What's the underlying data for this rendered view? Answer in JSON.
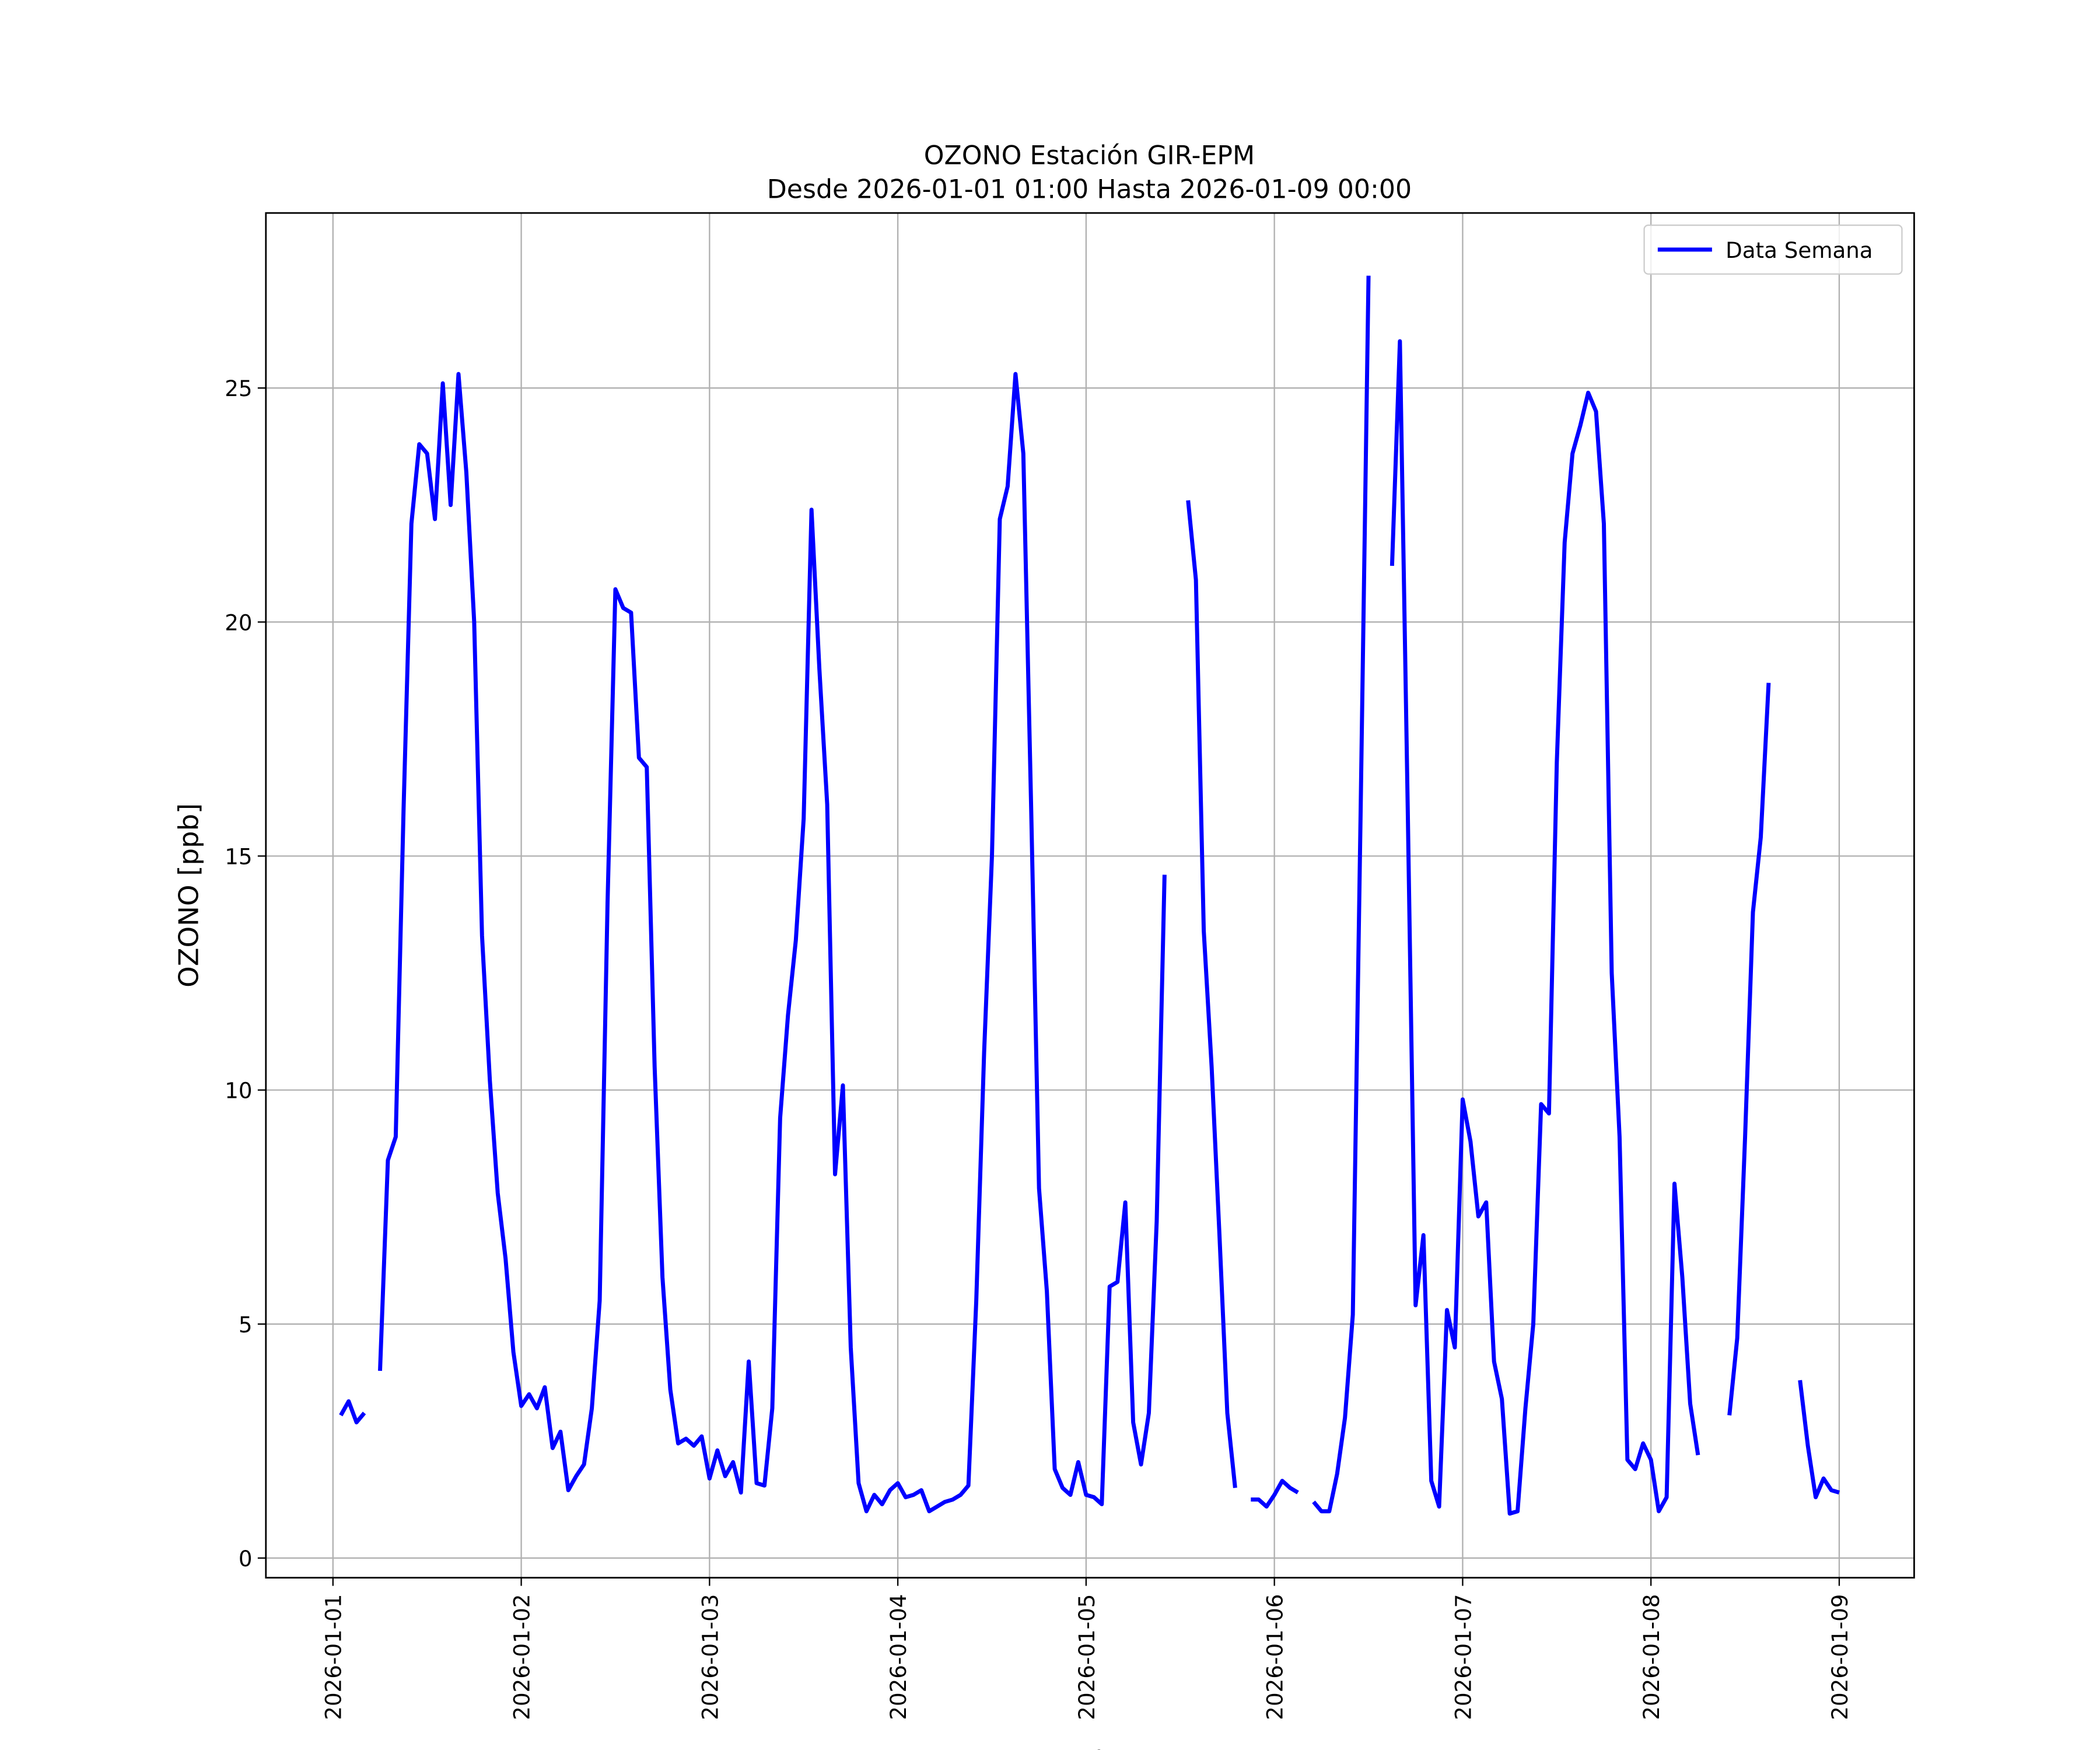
{
  "chart_data": {
    "type": "line",
    "title": "OZONO Estación GIR-EPM",
    "subtitle": "Desde 2026-01-01 01:00 Hasta 2026-01-09 00:00",
    "xlabel": "Fecha",
    "ylabel": "OZONO [ppb]",
    "x": [
      "2026-01-01 01:00",
      "2026-01-01 02:00",
      "2026-01-01 03:00",
      "2026-01-01 04:00",
      "2026-01-01 05:00",
      "2026-01-01 06:00",
      "2026-01-01 07:00",
      "2026-01-01 08:00",
      "2026-01-01 09:00",
      "2026-01-01 10:00",
      "2026-01-01 11:00",
      "2026-01-01 12:00",
      "2026-01-01 13:00",
      "2026-01-01 14:00",
      "2026-01-01 15:00",
      "2026-01-01 16:00",
      "2026-01-01 17:00",
      "2026-01-01 18:00",
      "2026-01-01 19:00",
      "2026-01-01 20:00",
      "2026-01-01 21:00",
      "2026-01-01 22:00",
      "2026-01-01 23:00",
      "2026-01-02 00:00",
      "2026-01-02 01:00",
      "2026-01-02 02:00",
      "2026-01-02 03:00",
      "2026-01-02 04:00",
      "2026-01-02 05:00",
      "2026-01-02 06:00",
      "2026-01-02 07:00",
      "2026-01-02 08:00",
      "2026-01-02 09:00",
      "2026-01-02 10:00",
      "2026-01-02 11:00",
      "2026-01-02 12:00",
      "2026-01-02 13:00",
      "2026-01-02 14:00",
      "2026-01-02 15:00",
      "2026-01-02 16:00",
      "2026-01-02 17:00",
      "2026-01-02 18:00",
      "2026-01-02 19:00",
      "2026-01-02 20:00",
      "2026-01-02 21:00",
      "2026-01-02 22:00",
      "2026-01-02 23:00",
      "2026-01-03 00:00",
      "2026-01-03 01:00",
      "2026-01-03 02:00",
      "2026-01-03 03:00",
      "2026-01-03 04:00",
      "2026-01-03 05:00",
      "2026-01-03 06:00",
      "2026-01-03 07:00",
      "2026-01-03 08:00",
      "2026-01-03 09:00",
      "2026-01-03 10:00",
      "2026-01-03 11:00",
      "2026-01-03 12:00",
      "2026-01-03 13:00",
      "2026-01-03 14:00",
      "2026-01-03 15:00",
      "2026-01-03 16:00",
      "2026-01-03 17:00",
      "2026-01-03 18:00",
      "2026-01-03 19:00",
      "2026-01-03 20:00",
      "2026-01-03 21:00",
      "2026-01-03 22:00",
      "2026-01-03 23:00",
      "2026-01-04 00:00",
      "2026-01-04 01:00",
      "2026-01-04 02:00",
      "2026-01-04 03:00",
      "2026-01-04 04:00",
      "2026-01-04 05:00",
      "2026-01-04 06:00",
      "2026-01-04 07:00",
      "2026-01-04 08:00",
      "2026-01-04 09:00",
      "2026-01-04 10:00",
      "2026-01-04 11:00",
      "2026-01-04 12:00",
      "2026-01-04 13:00",
      "2026-01-04 14:00",
      "2026-01-04 15:00",
      "2026-01-04 16:00",
      "2026-01-04 17:00",
      "2026-01-04 18:00",
      "2026-01-04 19:00",
      "2026-01-04 20:00",
      "2026-01-04 21:00",
      "2026-01-04 22:00",
      "2026-01-04 23:00",
      "2026-01-05 00:00",
      "2026-01-05 01:00",
      "2026-01-05 02:00",
      "2026-01-05 03:00",
      "2026-01-05 04:00",
      "2026-01-05 05:00",
      "2026-01-05 06:00",
      "2026-01-05 07:00",
      "2026-01-05 08:00",
      "2026-01-05 09:00",
      "2026-01-05 10:00",
      "2026-01-05 11:00",
      "2026-01-05 12:00",
      "2026-01-05 13:00",
      "2026-01-05 14:00",
      "2026-01-05 15:00",
      "2026-01-05 16:00",
      "2026-01-05 17:00",
      "2026-01-05 18:00",
      "2026-01-05 19:00",
      "2026-01-05 20:00",
      "2026-01-05 21:00",
      "2026-01-05 22:00",
      "2026-01-05 23:00",
      "2026-01-06 00:00",
      "2026-01-06 01:00",
      "2026-01-06 02:00",
      "2026-01-06 03:00",
      "2026-01-06 04:00",
      "2026-01-06 05:00",
      "2026-01-06 06:00",
      "2026-01-06 07:00",
      "2026-01-06 08:00",
      "2026-01-06 09:00",
      "2026-01-06 10:00",
      "2026-01-06 11:00",
      "2026-01-06 12:00",
      "2026-01-06 13:00",
      "2026-01-06 14:00",
      "2026-01-06 15:00",
      "2026-01-06 16:00",
      "2026-01-06 17:00",
      "2026-01-06 18:00",
      "2026-01-06 19:00",
      "2026-01-06 20:00",
      "2026-01-06 21:00",
      "2026-01-06 22:00",
      "2026-01-06 23:00",
      "2026-01-07 00:00",
      "2026-01-07 01:00",
      "2026-01-07 02:00",
      "2026-01-07 03:00",
      "2026-01-07 04:00",
      "2026-01-07 05:00",
      "2026-01-07 06:00",
      "2026-01-07 07:00",
      "2026-01-07 08:00",
      "2026-01-07 09:00",
      "2026-01-07 10:00",
      "2026-01-07 11:00",
      "2026-01-07 12:00",
      "2026-01-07 13:00",
      "2026-01-07 14:00",
      "2026-01-07 15:00",
      "2026-01-07 16:00",
      "2026-01-07 17:00",
      "2026-01-07 18:00",
      "2026-01-07 19:00",
      "2026-01-07 20:00",
      "2026-01-07 21:00",
      "2026-01-07 22:00",
      "2026-01-07 23:00",
      "2026-01-08 00:00",
      "2026-01-08 01:00",
      "2026-01-08 02:00",
      "2026-01-08 03:00",
      "2026-01-08 04:00",
      "2026-01-08 05:00",
      "2026-01-08 06:00",
      "2026-01-08 07:00",
      "2026-01-08 08:00",
      "2026-01-08 09:00",
      "2026-01-08 10:00",
      "2026-01-08 11:00",
      "2026-01-08 12:00",
      "2026-01-08 13:00",
      "2026-01-08 14:00",
      "2026-01-08 15:00",
      "2026-01-08 16:00",
      "2026-01-08 17:00",
      "2026-01-08 18:00",
      "2026-01-08 19:00",
      "2026-01-08 20:00",
      "2026-01-08 21:00",
      "2026-01-08 22:00",
      "2026-01-08 23:00",
      "2026-01-09 00:00"
    ],
    "series": [
      {
        "name": "Data Semana",
        "color": "#0000ff",
        "values": [
          3.05,
          3.35,
          2.9,
          3.1,
          null,
          4.0,
          8.5,
          9.0,
          16.0,
          22.1,
          23.8,
          23.6,
          22.2,
          25.1,
          22.5,
          25.3,
          23.2,
          20.0,
          13.3,
          10.2,
          7.8,
          6.4,
          4.4,
          3.25,
          3.5,
          3.2,
          3.65,
          2.35,
          2.7,
          1.45,
          1.75,
          2.0,
          3.2,
          5.5,
          14.0,
          20.7,
          20.3,
          20.2,
          17.1,
          16.9,
          10.5,
          6.0,
          3.6,
          2.45,
          2.55,
          2.4,
          2.6,
          1.7,
          2.3,
          1.75,
          2.05,
          1.4,
          4.2,
          1.6,
          1.55,
          3.2,
          9.4,
          11.6,
          13.2,
          15.8,
          22.4,
          19.0,
          16.1,
          8.2,
          10.1,
          4.5,
          1.6,
          1.0,
          1.35,
          1.15,
          1.45,
          1.6,
          1.3,
          1.35,
          1.45,
          1.0,
          1.1,
          1.2,
          1.25,
          1.35,
          1.55,
          5.5,
          10.8,
          15.0,
          22.2,
          22.9,
          25.3,
          23.6,
          16.0,
          7.9,
          5.7,
          1.9,
          1.5,
          1.35,
          2.05,
          1.35,
          1.3,
          1.15,
          5.8,
          5.9,
          7.6,
          2.9,
          2.0,
          3.1,
          7.2,
          14.6,
          null,
          null,
          22.6,
          20.9,
          13.4,
          10.5,
          6.9,
          3.1,
          1.5,
          null,
          1.25,
          1.25,
          1.1,
          1.35,
          1.65,
          1.5,
          1.4,
          null,
          1.2,
          1.0,
          1.0,
          1.8,
          3.0,
          5.2,
          16.0,
          27.4,
          null,
          null,
          21.2,
          26.0,
          16.0,
          5.4,
          6.9,
          1.65,
          1.1,
          5.3,
          4.5,
          9.8,
          8.9,
          7.3,
          7.6,
          4.2,
          3.4,
          0.95,
          1.0,
          3.2,
          5.0,
          9.7,
          9.5,
          17.0,
          21.7,
          23.6,
          24.2,
          24.9,
          24.5,
          22.1,
          12.5,
          9.0,
          2.1,
          1.9,
          2.45,
          2.1,
          1.0,
          1.3,
          8.0,
          6.0,
          3.3,
          2.2,
          null,
          null,
          null,
          3.05,
          4.7,
          9.0,
          13.8,
          15.4,
          18.7,
          null,
          null,
          null,
          3.8,
          2.4,
          1.3,
          1.7,
          1.45,
          1.4
        ]
      }
    ],
    "xlim": [
      "2025-12-31 15:27",
      "2026-01-09 09:33"
    ],
    "xticks": [
      "2026-01-01",
      "2026-01-02",
      "2026-01-03",
      "2026-01-04",
      "2026-01-05",
      "2026-01-06",
      "2026-01-07",
      "2026-01-08",
      "2026-01-09"
    ],
    "ylim": [
      -0.42,
      28.74
    ],
    "yticks": [
      0,
      5,
      10,
      15,
      20,
      25
    ],
    "grid": true,
    "legend": "upper right"
  }
}
